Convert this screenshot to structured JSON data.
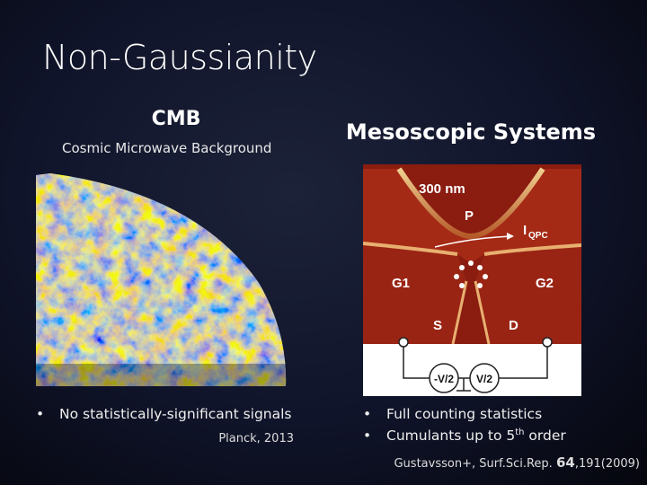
{
  "title": "Non-Gaussianity",
  "left": {
    "heading": "CMB",
    "subtitle": "Cosmic Microwave Background",
    "bullets": [
      "No statistically-significant signals"
    ],
    "citation": "Planck, 2013"
  },
  "right": {
    "heading": "Mesoscopic Systems",
    "bullets": [
      "Full counting statistics",
      [
        "Cumulants up to 5",
        "th",
        " order"
      ]
    ],
    "citation": [
      "Gustavsson+, Surf.Sci.Rep.",
      "64",
      ",191(2009)"
    ],
    "figure_labels": {
      "scale": "300 nm",
      "p": "P",
      "current": "I",
      "current_sub": "QPC",
      "g1": "G1",
      "g2": "G2",
      "s": "S",
      "d": "D",
      "v_minus": "-V/2",
      "v_plus": "V/2"
    }
  }
}
